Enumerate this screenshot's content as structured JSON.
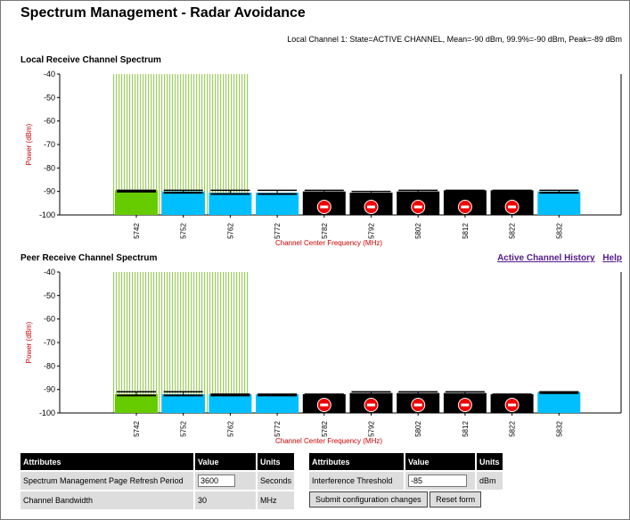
{
  "page": {
    "title": "Spectrum Management - Radar Avoidance",
    "status_line": "Local Channel 1: State=ACTIVE CHANNEL, Mean=-90 dBm, 99.9%=-90 dBm, Peak=-89 dBm"
  },
  "colors": {
    "active_channel": "#66cc00",
    "available_channel": "#00bfff",
    "radar_barred": "#000000",
    "barred_icon": "#ee0000",
    "hatch": "#8cc63f",
    "axis_label": "#cc0000"
  },
  "local_section": {
    "title": "Local Receive Channel Spectrum"
  },
  "peer_section": {
    "title": "Peer Receive Channel Spectrum",
    "links": [
      "Active Channel History",
      "Help"
    ]
  },
  "chart_data": [
    {
      "type": "bar",
      "name": "local",
      "ylabel": "Power (dBm)",
      "xlabel": "Channel Center Frequency (MHz)",
      "ylim": [
        -100,
        -40
      ],
      "yticks": [
        -40,
        -50,
        -60,
        -70,
        -80,
        -90,
        -100
      ],
      "categories": [
        "5742",
        "5752",
        "5762",
        "5772",
        "5782",
        "5792",
        "5802",
        "5812",
        "5822",
        "5832"
      ],
      "values": [
        -89.5,
        -90,
        -90.5,
        -90.5,
        -90,
        -90.5,
        -90,
        -89.5,
        -89.5,
        -90
      ],
      "peak": [
        -89.5,
        -89.5,
        -89.5,
        -89.5,
        -89.5,
        -90,
        -89.5,
        -89.5,
        -89.5,
        -89.5
      ],
      "states": [
        "active",
        "available",
        "available",
        "available",
        "barred",
        "barred",
        "barred",
        "barred",
        "barred",
        "available"
      ],
      "hatch_region_categories": [
        "5742",
        "5752"
      ],
      "hatch_range_mhz": [
        5737,
        5766
      ],
      "grid": false
    },
    {
      "type": "bar",
      "name": "peer",
      "ylabel": "Power (dBm)",
      "xlabel": "Channel Center Frequency (MHz)",
      "ylim": [
        -100,
        -40
      ],
      "yticks": [
        -40,
        -50,
        -60,
        -70,
        -80,
        -90,
        -100
      ],
      "categories": [
        "5742",
        "5752",
        "5762",
        "5772",
        "5782",
        "5792",
        "5802",
        "5812",
        "5822",
        "5832"
      ],
      "values": [
        -92,
        -92,
        -92,
        -92,
        -92,
        -91.5,
        -91.5,
        -91.5,
        -92,
        -91
      ],
      "peak": [
        -91,
        -91,
        -92,
        -92,
        -92,
        -91,
        -91,
        -91,
        -92,
        -91
      ],
      "states": [
        "active",
        "available",
        "available",
        "available",
        "barred",
        "barred",
        "barred",
        "barred",
        "barred",
        "available"
      ],
      "hatch_region_categories": [
        "5742",
        "5752"
      ],
      "hatch_range_mhz": [
        5737,
        5766
      ],
      "grid": false
    }
  ],
  "attributes_table_1": {
    "headers": [
      "Attributes",
      "Value",
      "Units"
    ],
    "rows": [
      {
        "attribute": "Spectrum Management Page Refresh Period",
        "value": "3600",
        "units": "Seconds"
      },
      {
        "attribute": "Channel Bandwidth",
        "value": "30",
        "units": "MHz"
      }
    ]
  },
  "attributes_table_2": {
    "headers": [
      "Attributes",
      "Value",
      "Units"
    ],
    "rows": [
      {
        "attribute": "Interference Threshold",
        "value": "-85",
        "units": "dBm"
      }
    ],
    "submit_label": "Submit configuration changes",
    "reset_label": "Reset form"
  }
}
